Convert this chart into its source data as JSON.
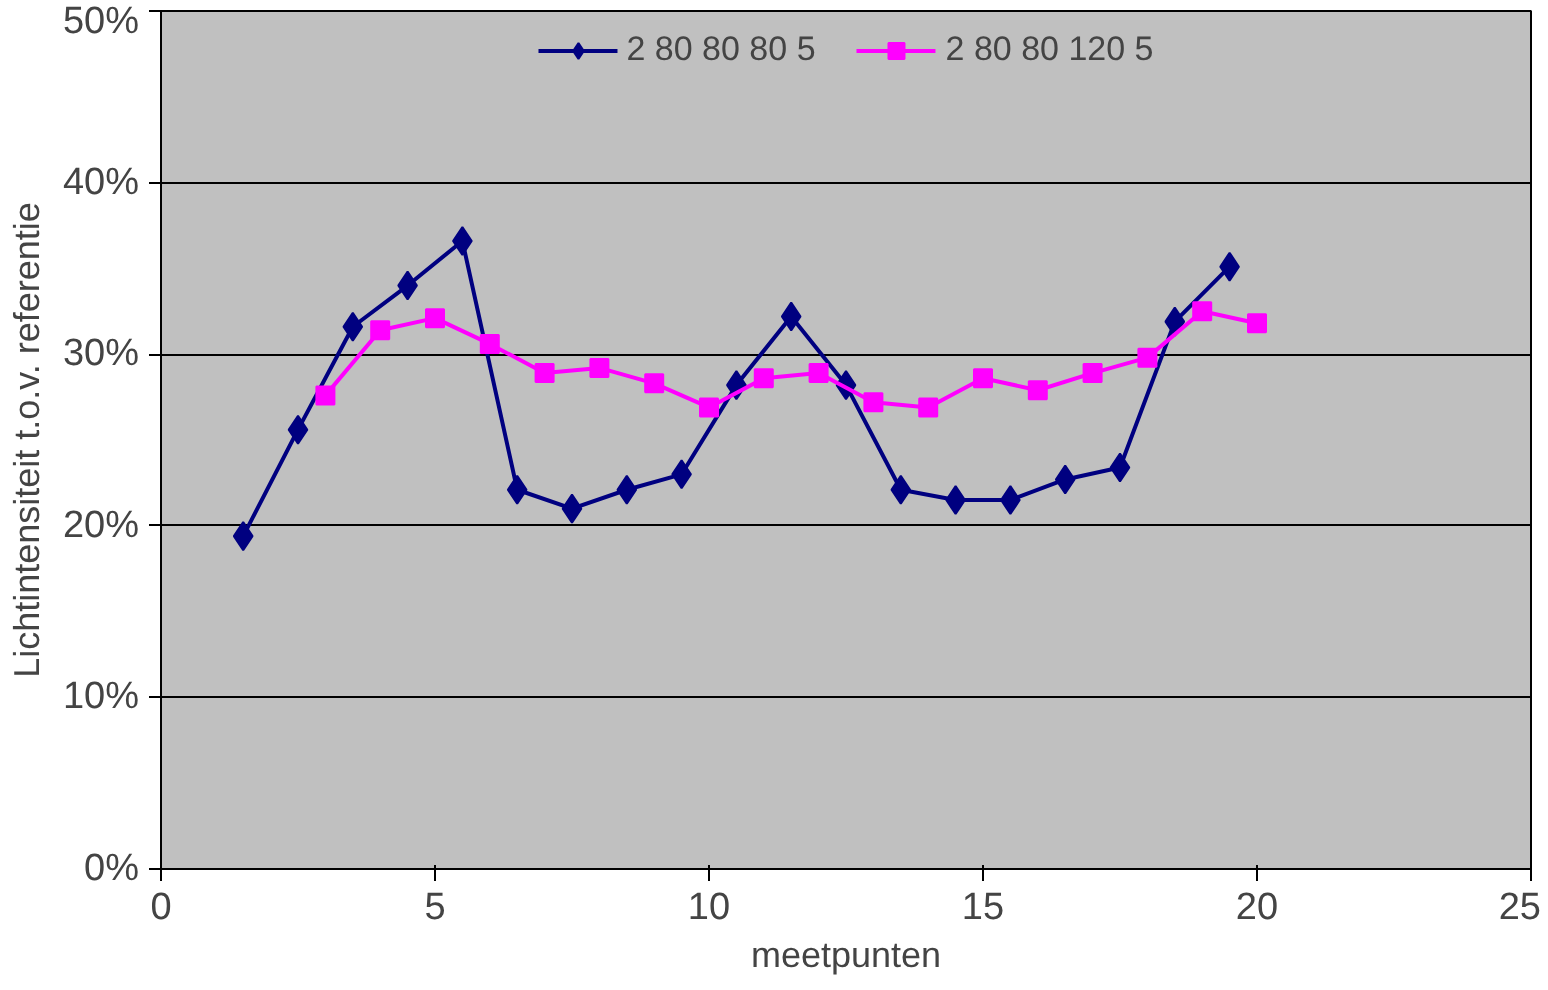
{
  "chart_data": {
    "type": "line",
    "xlabel": "meetpunten",
    "ylabel": "Lichtintensiteit t.o.v. referentie",
    "xlim": [
      0,
      25
    ],
    "xticks": [
      0,
      5,
      10,
      15,
      20,
      25
    ],
    "ylim": [
      0,
      50
    ],
    "yticks": [
      {
        "value": 0,
        "label": "0%"
      },
      {
        "value": 10,
        "label": "10%"
      },
      {
        "value": 20,
        "label": "20%"
      },
      {
        "value": 30,
        "label": "30%"
      },
      {
        "value": 40,
        "label": "40%"
      },
      {
        "value": 50,
        "label": "50%"
      }
    ],
    "grid": "y",
    "legend": "top",
    "line_style": "solid",
    "series": [
      {
        "name": "2 80 80 80 5",
        "color": "#000080",
        "marker": "diamond",
        "x": [
          1.5,
          2.5,
          3.5,
          4.5,
          5.5,
          6.5,
          7.5,
          8.5,
          9.5,
          10.5,
          11.5,
          12.5,
          13.5,
          14.5,
          15.5,
          16.5,
          17.5,
          18.5,
          19.5
        ],
        "values": [
          19.4,
          25.6,
          31.6,
          34.0,
          36.6,
          22.1,
          21.0,
          22.1,
          23.0,
          28.2,
          32.2,
          28.2,
          22.1,
          21.5,
          21.5,
          22.7,
          23.4,
          31.9,
          35.1
        ]
      },
      {
        "name": "2 80 80 120 5",
        "color": "#ff00ff",
        "marker": "square",
        "x": [
          3,
          4,
          5,
          6,
          7,
          8,
          9,
          10,
          11,
          12,
          13,
          14,
          15,
          16,
          17,
          18,
          19,
          20
        ],
        "values": [
          27.6,
          31.4,
          32.1,
          30.6,
          28.9,
          29.2,
          28.3,
          26.9,
          28.6,
          28.9,
          27.2,
          26.9,
          28.6,
          27.9,
          28.9,
          29.8,
          32.5,
          31.8
        ]
      }
    ]
  }
}
